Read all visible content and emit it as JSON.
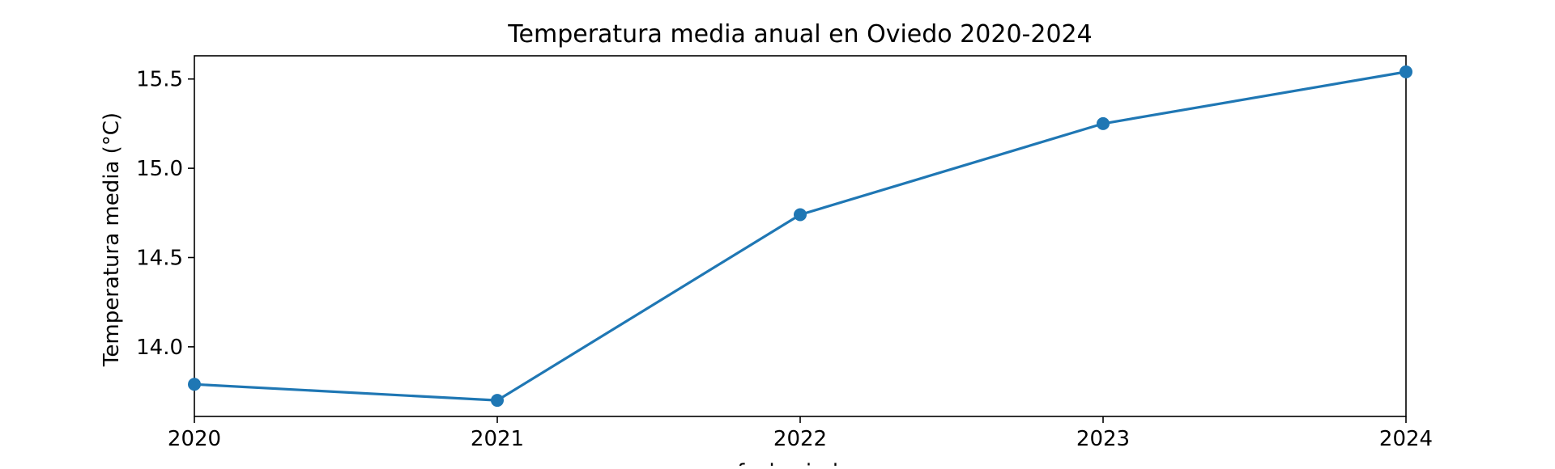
{
  "chart_data": {
    "type": "line",
    "title": "Temperatura media anual en Oviedo 2020-2024",
    "xlabel": "fecha_index",
    "ylabel": "Temperatura media (°C)",
    "x": [
      2020,
      2021,
      2022,
      2023,
      2024
    ],
    "xticks": [
      "2020",
      "2021",
      "2022",
      "2023",
      "2024"
    ],
    "xlim": [
      2020,
      2024
    ],
    "yticks": [
      14.0,
      14.5,
      15.0,
      15.5
    ],
    "ytick_labels": [
      "14.0",
      "14.5",
      "15.0",
      "15.5"
    ],
    "ylim": [
      13.61,
      15.63
    ],
    "grid": false,
    "legend": "none",
    "series": [
      {
        "values": [
          13.79,
          13.7,
          14.74,
          15.25,
          15.54
        ],
        "color": "#1f77b4",
        "marker": "circle"
      }
    ]
  }
}
